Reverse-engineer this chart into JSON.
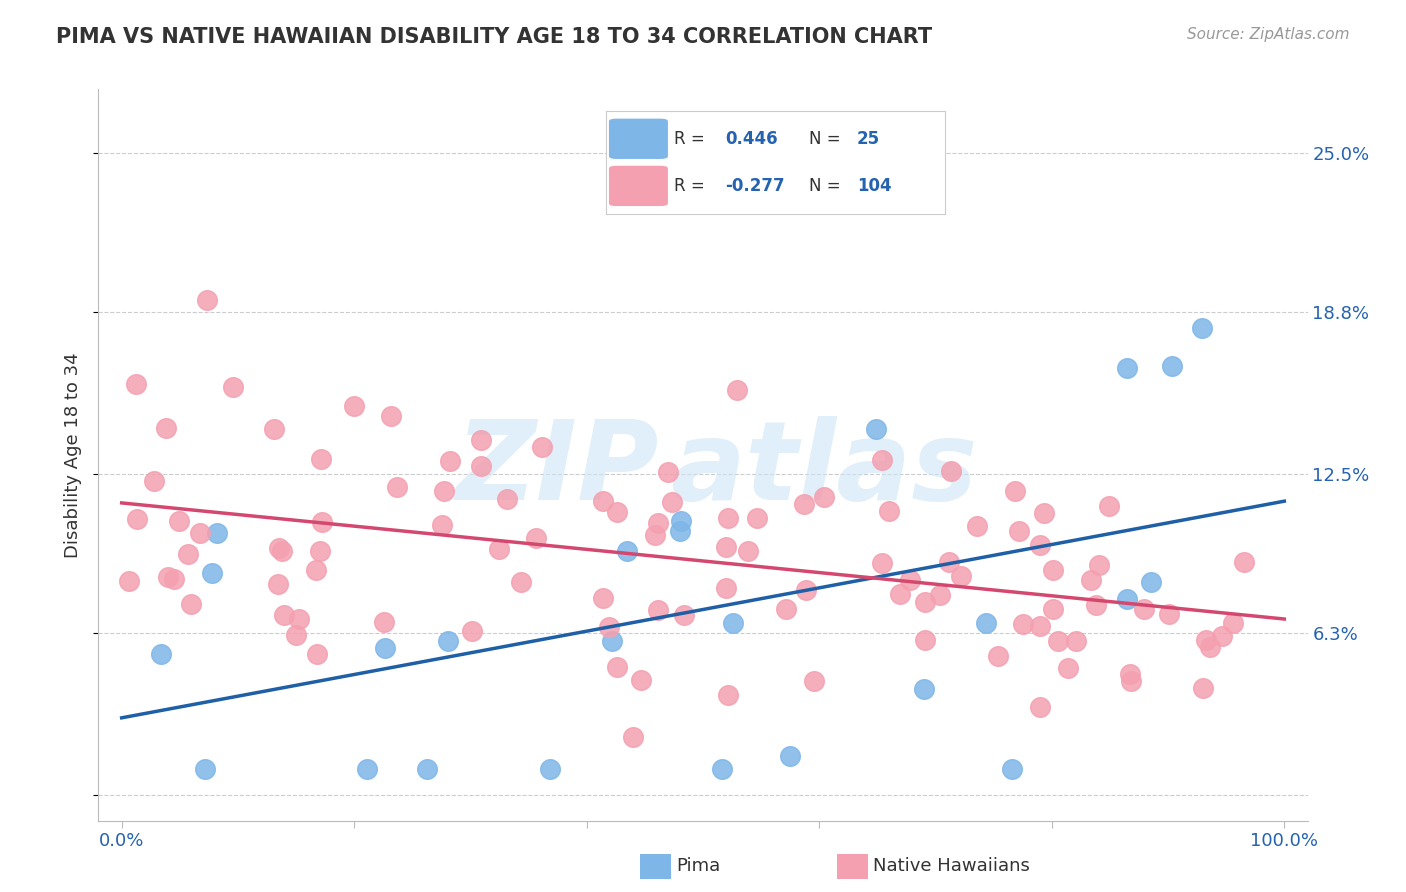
{
  "title": "PIMA VS NATIVE HAWAIIAN DISABILITY AGE 18 TO 34 CORRELATION CHART",
  "source": "Source: ZipAtlas.com",
  "ylabel": "Disability Age 18 to 34",
  "pima_R": 0.446,
  "pima_N": 25,
  "nhaw_R": -0.277,
  "nhaw_N": 104,
  "pima_color": "#7EB6E8",
  "nhaw_color": "#F4A0B0",
  "pima_line_color": "#1F5FA6",
  "nhaw_line_color": "#D44870",
  "blue_text_color": "#2563b0",
  "background_color": "#ffffff",
  "grid_color": "#cccccc",
  "title_color": "#333333",
  "ytick_positions": [
    0,
    6.3,
    12.5,
    18.8,
    25.0
  ],
  "ytick_labels": [
    "",
    "6.3%",
    "12.5%",
    "18.8%",
    "25.0%"
  ],
  "xtick_positions": [
    0,
    20,
    40,
    60,
    80,
    100
  ],
  "xtick_labels": [
    "0.0%",
    "",
    "",
    "",
    "",
    "100.0%"
  ]
}
